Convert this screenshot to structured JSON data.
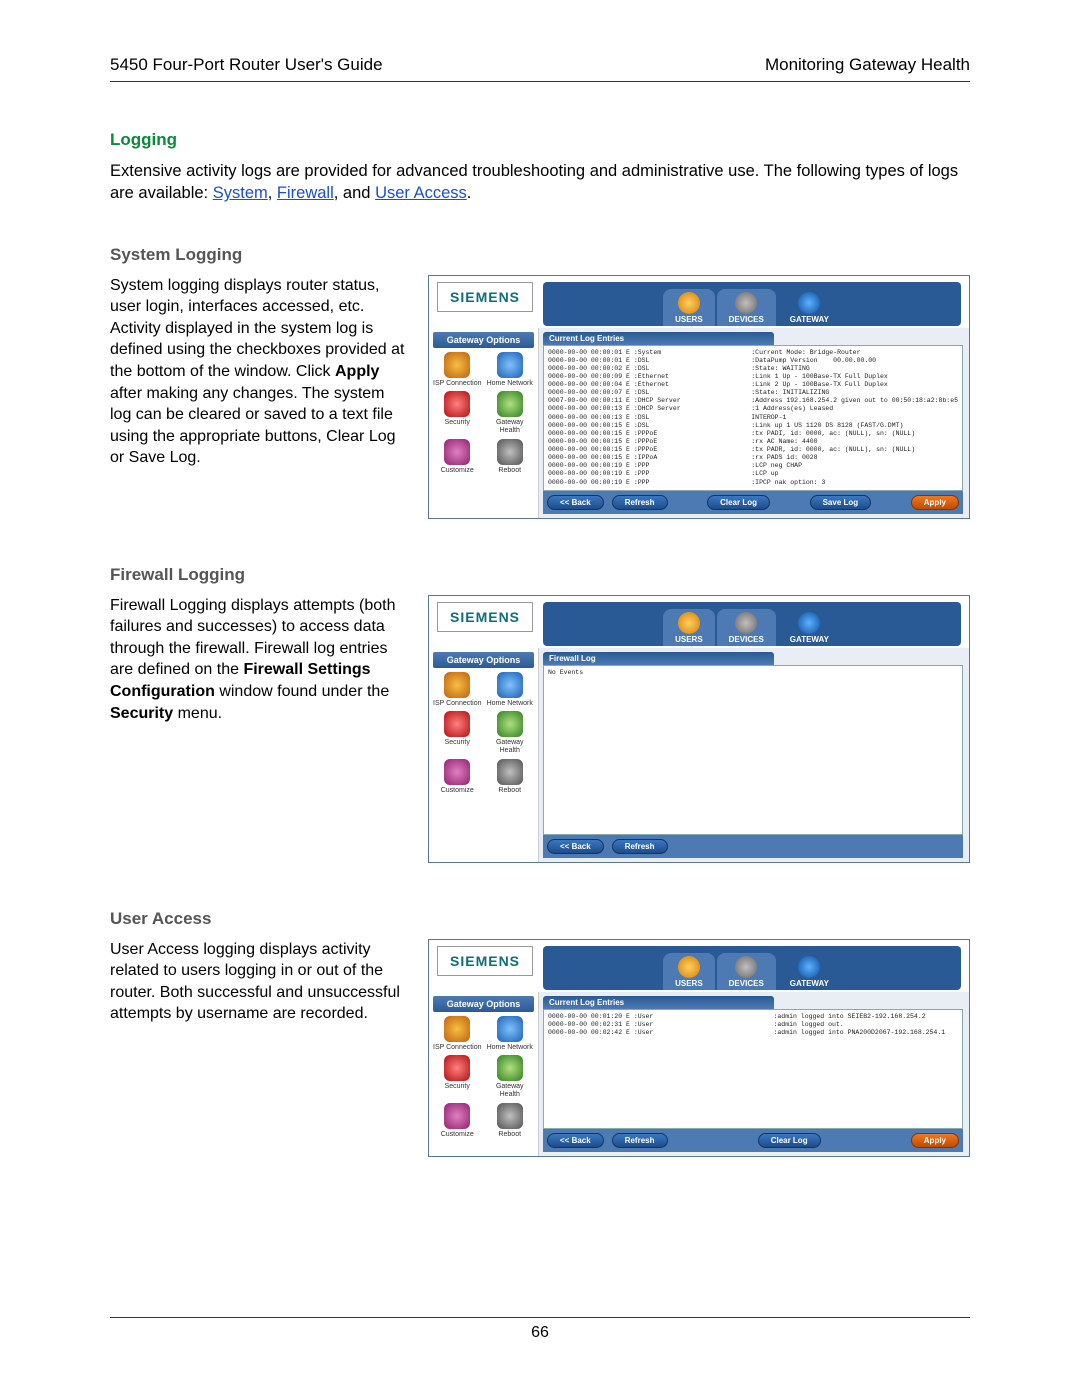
{
  "header": {
    "left": "5450 Four-Port Router User's Guide",
    "right": "Monitoring Gateway Health"
  },
  "logging": {
    "title": "Logging",
    "intro_pre": "Extensive activity logs are provided for advanced troubleshooting and administrative use. The following types of logs are available: ",
    "link_system": "System",
    "sep1": ", ",
    "link_firewall": "Firewall",
    "sep2": ", and ",
    "link_useraccess": "User Access",
    "period": "."
  },
  "system": {
    "heading": "System Logging",
    "text_a": "System logging displays router status, user login, interfaces accessed, etc. Activity displayed in the system log is defined using the checkboxes provided at the bottom of the window. Click ",
    "bold_apply": "Apply",
    "text_b": " after making any changes. The system log can be cleared or saved to a text file using the appropriate buttons, Clear Log or Save Log."
  },
  "firewall": {
    "heading": "Firewall Logging",
    "text_a": "Firewall Logging displays attempts (both failures and successes) to access data through the firewall. Firewall log entries are defined on the ",
    "bold1": "Firewall Settings Configuration",
    "text_b": " window found under the ",
    "bold2": "Security",
    "text_c": " menu."
  },
  "useraccess": {
    "heading": "User Access",
    "text": "User Access logging displays activity related to users logging in or out of the router. Both successful and unsuccessful attempts by username are recorded."
  },
  "screenshot": {
    "brand": "SIEMENS",
    "tabs": {
      "users": "USERS",
      "devices": "DEVICES",
      "gateway": "GATEWAY"
    },
    "side_title": "Gateway Options",
    "side_items": {
      "isp": "ISP\nConnection",
      "home": "Home\nNetwork",
      "security": "Security",
      "health": "Gateway\nHealth",
      "customize": "Customize",
      "reboot": "Reboot"
    },
    "panel_system": "Current Log Entries",
    "panel_firewall": "Firewall Log",
    "panel_user": "Current Log Entries",
    "fw_noevents": "No Events",
    "buttons": {
      "back": "<< Back",
      "refresh": "Refresh",
      "clearlog": "Clear Log",
      "savelog": "Save Log",
      "apply": "Apply"
    },
    "syslog_left": "0000-00-00 00:00:01 E :System\n0000-00-00 00:00:01 E :DSL\n0000-00-00 00:00:02 E :DSL\n0000-00-00 00:00:09 E :Ethernet\n0000-00-00 00:00:04 E :Ethernet\n0000-00-00 00:00:07 E :DSL\n0007-00-00 00:00:11 E :DHCP Server\n0000-00-00 00:00:13 E :DHCP Server\n0000-00-00 00:00:13 E :DSL\n0000-00-00 00:00:15 E :DSL\n0000-00-00 00:00:15 E :PPPoE\n0000-00-00 00:00:15 E :PPPoE\n0000-00-00 00:00:15 E :PPPoE\n0000-00-00 00:00:15 E :IPPoA\n0000-00-00 00:00:19 E :PPP\n0000-00-00 00:00:19 E :PPP\n0000-00-00 00:00:19 E :PPP",
    "syslog_right": ":Current Mode: Bridge-Router\n:DataPump Version    00.00.00.00\n:State: WAITING\n:Link 1 Up - 100Base-TX Full Duplex\n:Link 2 Up - 100Base-TX Full Duplex\n:State: INITIALIZING\n:Address 192.168.254.2 given out to 00:50:18:a2:8b:e5\n:1 Address(es) Leased\nINTEROP-1\n:Link up 1 US 1120 DS 8128 (FAST/G.DMT)\n:tx PADI, id: 0000, ac: (NULL), sn: (NULL)\n:rx AC Name: 4400\n:tx PADR, id: 0000, ac: (NULL), sn: (NULL)\n:rx PADS id: 0028\n:LCP neg CHAP\n:LCP up\n:IPCP nak option: 3",
    "userlog_left": "0000-00-00 00:01:20 E :User\n0000-00-00 00:02:31 E :User\n0000-00-00 00:02:42 E :User",
    "userlog_right": ":admin logged into SEIEB2-192.168.254.2\n:admin logged out.\n:admin logged into PNA200D2067-192.168.254.1"
  },
  "page_number": "66",
  "colors": {
    "heading_green": "#0a8a3a",
    "subhead_gray": "#555555",
    "link_blue": "#1a4ed0",
    "bar_blue": "#2a5a95",
    "tab_blue": "#4d7ab3",
    "pill_orange": "#f07820"
  }
}
